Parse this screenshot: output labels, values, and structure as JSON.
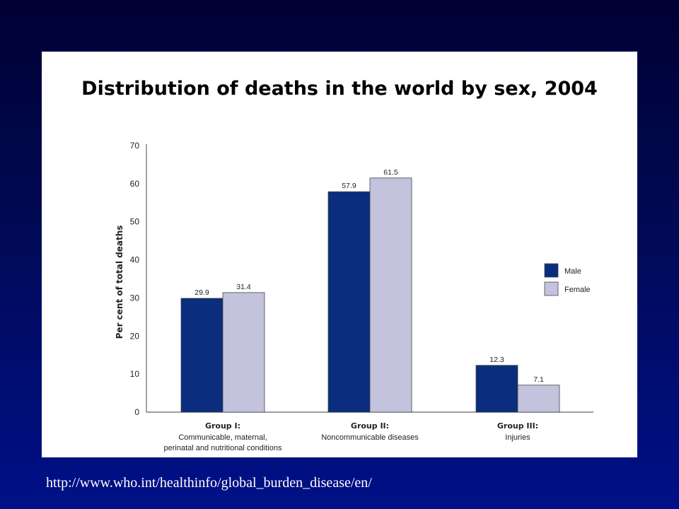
{
  "footer": {
    "url": "http://www.who.int/healthinfo/global_burden_disease/en/"
  },
  "chart_data": {
    "type": "bar",
    "title": "Distribution of deaths in the world by sex, 2004",
    "ylabel": "Per cent of total deaths",
    "xlabel": "",
    "ylim": [
      0,
      70
    ],
    "yticks": [
      0,
      10,
      20,
      30,
      40,
      50,
      60,
      70
    ],
    "grid": false,
    "legend_position": "right",
    "categories": [
      {
        "title": "Group I:",
        "lines": [
          "Communicable, maternal,",
          "perinatal and nutritional conditions"
        ]
      },
      {
        "title": "Group II:",
        "lines": [
          "Noncommunicable diseases"
        ]
      },
      {
        "title": "Group III:",
        "lines": [
          "Injuries"
        ]
      }
    ],
    "series": [
      {
        "name": "Male",
        "color": "#0a2d7e",
        "values": [
          29.9,
          57.9,
          12.3
        ],
        "labels": [
          "29.9",
          "57.9",
          "12.3"
        ]
      },
      {
        "name": "Female",
        "color": "#c4c3de",
        "values": [
          31.4,
          61.5,
          7.1
        ],
        "labels": [
          "31.4",
          "61.5",
          "7.1"
        ]
      }
    ]
  }
}
